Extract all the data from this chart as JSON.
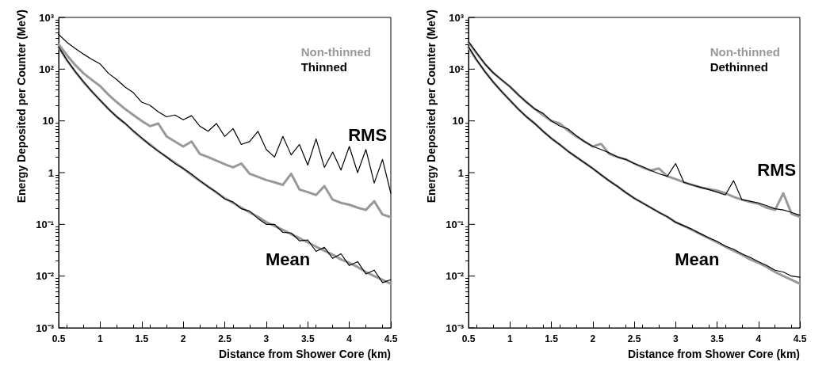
{
  "chart_data": [
    {
      "type": "line",
      "xlabel": "Distance from Shower Core (km)",
      "ylabel": "Energy Deposited per Counter (MeV)",
      "log": "y",
      "xlim": [
        0.5,
        4.5
      ],
      "xticks": [
        0.5,
        1,
        1.5,
        2,
        2.5,
        3,
        3.5,
        4,
        4.5
      ],
      "ylim": [
        0.001,
        1000
      ],
      "yticks": [
        {
          "value": 0.001,
          "label": "10⁻³"
        },
        {
          "value": 0.01,
          "label": "10⁻²"
        },
        {
          "value": 0.1,
          "label": "10⁻¹"
        },
        {
          "value": 1,
          "label": "1"
        },
        {
          "value": 10,
          "label": "10"
        },
        {
          "value": 100,
          "label": "10²"
        },
        {
          "value": 1000,
          "label": "10³"
        }
      ],
      "grid": false,
      "legend": "top right",
      "marker": "none",
      "line_style": "solid",
      "x": [
        0.5,
        0.6,
        0.7,
        0.8,
        0.9,
        1.0,
        1.1,
        1.2,
        1.3,
        1.4,
        1.5,
        1.6,
        1.7,
        1.8,
        1.9,
        2.0,
        2.1,
        2.2,
        2.3,
        2.4,
        2.5,
        2.6,
        2.7,
        2.8,
        2.9,
        3.0,
        3.1,
        3.2,
        3.3,
        3.4,
        3.5,
        3.6,
        3.7,
        3.8,
        3.9,
        4.0,
        4.1,
        4.2,
        4.3,
        4.4,
        4.5
      ],
      "series": [
        {
          "name": "Non-thinned",
          "color": "#999999",
          "values": [
            263,
            148,
            89,
            56,
            37,
            25,
            17,
            12,
            8.9,
            6.3,
            4.6,
            3.5,
            2.6,
            2.0,
            1.55,
            1.2,
            0.91,
            0.69,
            0.54,
            0.41,
            0.32,
            0.26,
            0.21,
            0.17,
            0.14,
            0.11,
            0.093,
            0.078,
            0.065,
            0.054,
            0.045,
            0.037,
            0.031,
            0.026,
            0.021,
            0.018,
            0.015,
            0.012,
            0.01,
            0.0085,
            0.0071
          ]
        },
        {
          "color": "#999999",
          "values": [
            302,
            186,
            120,
            83,
            62,
            47,
            32,
            23,
            17,
            13,
            10,
            7.9,
            8.9,
            5.0,
            4.0,
            3.2,
            4.0,
            2.3,
            2.0,
            1.7,
            1.45,
            1.26,
            1.5,
            0.95,
            0.83,
            0.72,
            0.65,
            0.58,
            0.95,
            0.47,
            0.42,
            0.37,
            0.55,
            0.3,
            0.26,
            0.24,
            0.21,
            0.19,
            0.28,
            0.155,
            0.138
          ]
        },
        {
          "name": "Thinned",
          "color": "#000000",
          "values": [
            270,
            150,
            90,
            57,
            37,
            25,
            17,
            12,
            9.0,
            6.4,
            4.7,
            3.4,
            2.6,
            2.0,
            1.5,
            1.2,
            0.93,
            0.7,
            0.53,
            0.42,
            0.31,
            0.27,
            0.2,
            0.18,
            0.13,
            0.1,
            0.1,
            0.07,
            0.068,
            0.048,
            0.05,
            0.03,
            0.036,
            0.022,
            0.027,
            0.016,
            0.019,
            0.011,
            0.013,
            0.0075,
            0.0085
          ]
        },
        {
          "color": "#000000",
          "values": [
            470,
            330,
            250,
            195,
            155,
            126,
            83,
            63,
            45,
            35,
            23,
            20,
            15,
            12,
            13,
            10.5,
            12.6,
            7.9,
            6.3,
            8.9,
            5.0,
            7.1,
            3.5,
            4.0,
            6.3,
            2.8,
            2.0,
            5.0,
            2.2,
            3.5,
            1.4,
            4.5,
            1.26,
            2.5,
            1.12,
            3.2,
            1.0,
            2.8,
            0.63,
            1.8,
            0.4
          ]
        }
      ],
      "annotations": [
        "RMS",
        "Mean"
      ]
    },
    {
      "type": "line",
      "xlabel": "Distance from Shower Core (km)",
      "ylabel": "Energy Deposited per Counter (MeV)",
      "log": "y",
      "xlim": [
        0.5,
        4.5
      ],
      "xticks": [
        0.5,
        1,
        1.5,
        2,
        2.5,
        3,
        3.5,
        4,
        4.5
      ],
      "ylim": [
        0.001,
        1000
      ],
      "yticks": [
        {
          "value": 0.001,
          "label": "10⁻³"
        },
        {
          "value": 0.01,
          "label": "10⁻²"
        },
        {
          "value": 0.1,
          "label": "10⁻¹"
        },
        {
          "value": 1,
          "label": "1"
        },
        {
          "value": 10,
          "label": "10"
        },
        {
          "value": 100,
          "label": "10²"
        },
        {
          "value": 1000,
          "label": "10³"
        }
      ],
      "grid": false,
      "legend": "top right",
      "marker": "none",
      "line_style": "solid",
      "x": [
        0.5,
        0.6,
        0.7,
        0.8,
        0.9,
        1.0,
        1.1,
        1.2,
        1.3,
        1.4,
        1.5,
        1.6,
        1.7,
        1.8,
        1.9,
        2.0,
        2.1,
        2.2,
        2.3,
        2.4,
        2.5,
        2.6,
        2.7,
        2.8,
        2.9,
        3.0,
        3.1,
        3.2,
        3.3,
        3.4,
        3.5,
        3.6,
        3.7,
        3.8,
        3.9,
        4.0,
        4.1,
        4.2,
        4.3,
        4.4,
        4.5
      ],
      "series": [
        {
          "name": "Non-thinned",
          "color": "#999999",
          "values": [
            263,
            148,
            89,
            56,
            37,
            25,
            17,
            12,
            8.9,
            6.3,
            4.6,
            3.5,
            2.6,
            2.0,
            1.55,
            1.2,
            0.91,
            0.69,
            0.54,
            0.41,
            0.32,
            0.26,
            0.21,
            0.17,
            0.14,
            0.11,
            0.093,
            0.078,
            0.065,
            0.054,
            0.045,
            0.037,
            0.031,
            0.026,
            0.021,
            0.018,
            0.015,
            0.012,
            0.01,
            0.0085,
            0.0071
          ]
        },
        {
          "color": "#999999",
          "values": [
            330,
            200,
            125,
            85,
            62,
            46,
            32,
            23,
            17,
            13,
            10,
            8.9,
            6.5,
            5.0,
            4.0,
            3.2,
            3.6,
            2.3,
            2.0,
            1.8,
            1.5,
            1.26,
            1.1,
            1.2,
            0.85,
            0.75,
            0.65,
            0.58,
            0.52,
            0.48,
            0.45,
            0.4,
            0.34,
            0.3,
            0.27,
            0.25,
            0.21,
            0.19,
            0.4,
            0.16,
            0.14
          ]
        },
        {
          "name": "Dethinned",
          "color": "#000000",
          "values": [
            270,
            150,
            89,
            56,
            37,
            25,
            17,
            12,
            8.9,
            6.3,
            4.6,
            3.5,
            2.6,
            2.0,
            1.55,
            1.2,
            0.91,
            0.69,
            0.54,
            0.41,
            0.32,
            0.26,
            0.21,
            0.17,
            0.14,
            0.11,
            0.094,
            0.08,
            0.066,
            0.055,
            0.047,
            0.038,
            0.033,
            0.027,
            0.023,
            0.019,
            0.016,
            0.013,
            0.012,
            0.01,
            0.0095
          ]
        },
        {
          "color": "#000000",
          "values": [
            340,
            205,
            125,
            84,
            62,
            46,
            32,
            23,
            17,
            14,
            10,
            8.0,
            7.0,
            5.2,
            4.0,
            3.2,
            2.8,
            2.4,
            2.0,
            1.8,
            1.5,
            1.3,
            1.1,
            0.95,
            0.85,
            1.5,
            0.65,
            0.58,
            0.52,
            0.47,
            0.42,
            0.37,
            0.7,
            0.3,
            0.28,
            0.26,
            0.23,
            0.2,
            0.19,
            0.17,
            0.15
          ]
        }
      ],
      "annotations": [
        "RMS",
        "Mean"
      ]
    }
  ]
}
